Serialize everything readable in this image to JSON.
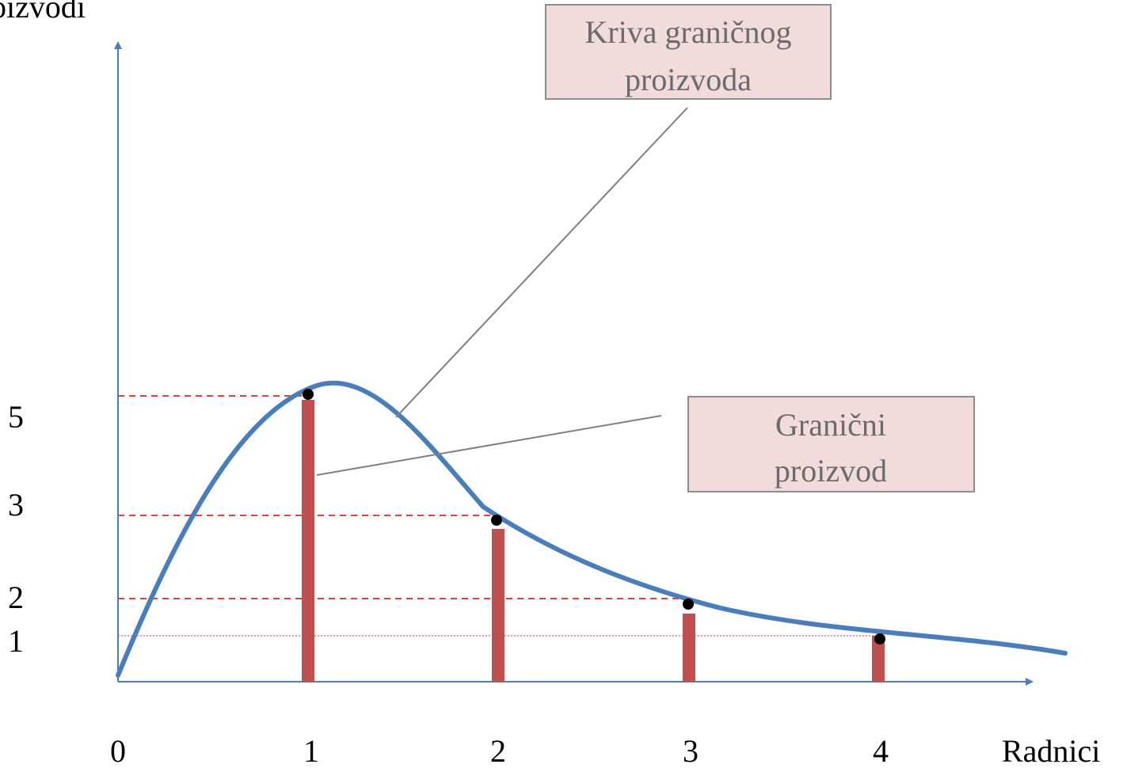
{
  "chart_data": {
    "type": "bar",
    "xlabel": "Radnici",
    "ylabel": "oizvodi",
    "x_ticks": [
      "0",
      "1",
      "2",
      "3",
      "4"
    ],
    "y_ticks": [
      "1",
      "2",
      "3",
      "5"
    ],
    "grid": false,
    "series": [
      {
        "values": [
          {
            "x": 1,
            "y": 5
          },
          {
            "x": 2,
            "y": 3
          },
          {
            "x": 3,
            "y": 2
          },
          {
            "x": 4,
            "y": 1
          }
        ]
      }
    ],
    "annotations": [
      {
        "text_lines": [
          "Kriva graničnog",
          "proizvoda"
        ],
        "target": "curve"
      },
      {
        "text_lines": [
          "Granični",
          "proizvod"
        ],
        "target": "bar-1"
      }
    ],
    "colors": {
      "curve": "#4a7ebb",
      "bars": "#c0504d",
      "axes": "#4a7ebb",
      "guides": "#e04040",
      "callout_fill": "#f2dcdb",
      "callout_border": "#8c8c8c"
    }
  }
}
